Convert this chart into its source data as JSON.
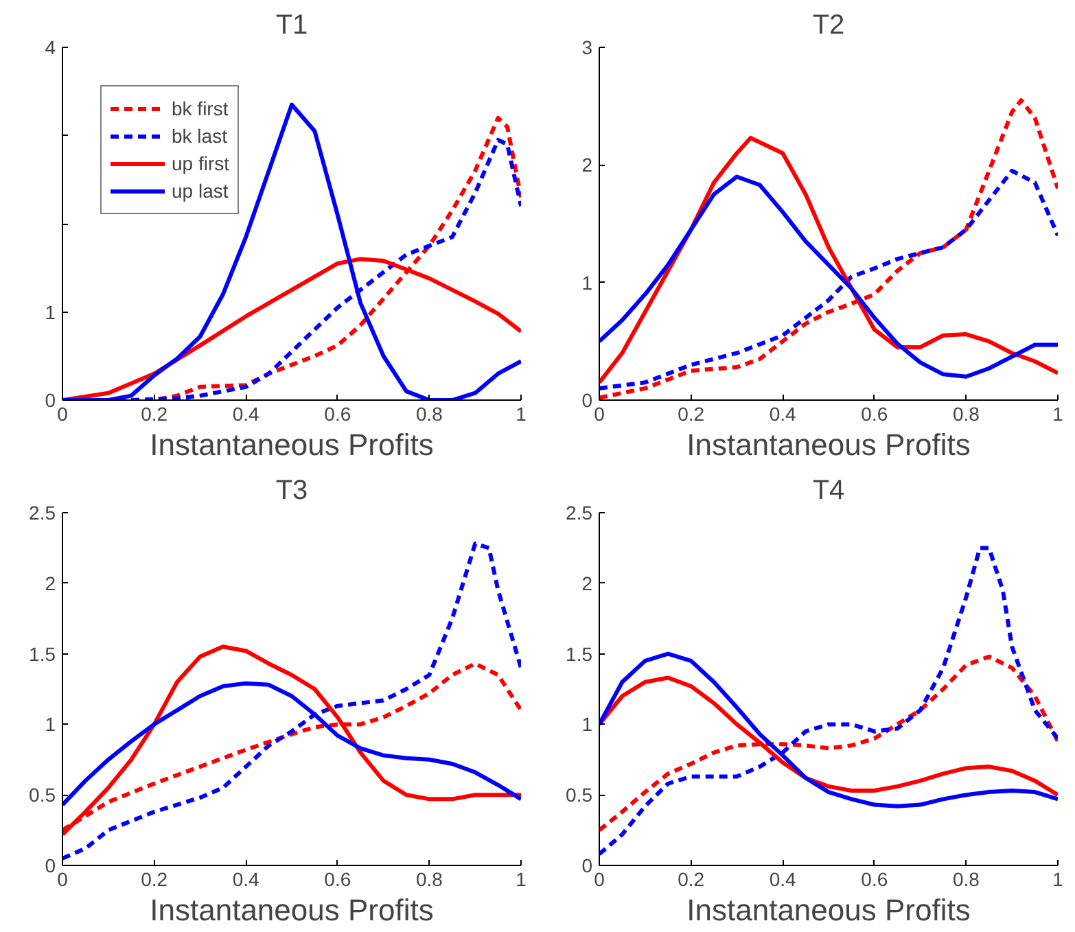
{
  "chart_data": [
    {
      "type": "line",
      "title": "T1",
      "xlabel": "Instantaneous Profits",
      "xlim": [
        0,
        1
      ],
      "ylim": [
        0,
        4
      ],
      "xticks": [
        0,
        0.2,
        0.4,
        0.6,
        0.8,
        1
      ],
      "yticks": [
        0,
        1,
        {
          "value": 2,
          "label": null
        },
        {
          "value": 3,
          "label": null
        },
        4
      ],
      "grid": false,
      "legend": "top left",
      "series": [
        {
          "name": "bk first",
          "color": "#ff0000",
          "line_style": "dashed",
          "x": [
            0,
            0.2,
            0.25,
            0.3,
            0.4,
            0.45,
            0.5,
            0.55,
            0.6,
            0.65,
            0.7,
            0.75,
            0.8,
            0.85,
            0.9,
            0.95,
            0.97,
            1
          ],
          "values": [
            0,
            0,
            0.05,
            0.15,
            0.17,
            0.3,
            0.4,
            0.5,
            0.62,
            0.85,
            1.15,
            1.45,
            1.75,
            2.15,
            2.6,
            3.2,
            3.1,
            2.3
          ]
        },
        {
          "name": "bk last",
          "color": "#0000ff",
          "line_style": "dashed",
          "x": [
            0,
            0.15,
            0.25,
            0.3,
            0.35,
            0.4,
            0.45,
            0.5,
            0.55,
            0.6,
            0.65,
            0.7,
            0.75,
            0.8,
            0.85,
            0.9,
            0.95,
            0.97,
            1
          ],
          "values": [
            0,
            0,
            0.02,
            0.05,
            0.1,
            0.15,
            0.3,
            0.55,
            0.8,
            1.05,
            1.25,
            1.45,
            1.65,
            1.75,
            1.85,
            2.35,
            2.95,
            2.9,
            2.2
          ]
        },
        {
          "name": "up first",
          "color": "#ff0000",
          "line_style": "solid",
          "x": [
            0,
            0.1,
            0.2,
            0.3,
            0.4,
            0.5,
            0.55,
            0.6,
            0.65,
            0.7,
            0.75,
            0.8,
            0.85,
            0.9,
            0.95,
            1
          ],
          "values": [
            0,
            0.08,
            0.3,
            0.62,
            0.95,
            1.25,
            1.4,
            1.55,
            1.6,
            1.58,
            1.48,
            1.38,
            1.25,
            1.12,
            0.98,
            0.78
          ]
        },
        {
          "name": "up last",
          "color": "#0000ff",
          "line_style": "solid",
          "x": [
            0,
            0.1,
            0.15,
            0.2,
            0.25,
            0.3,
            0.35,
            0.4,
            0.45,
            0.5,
            0.55,
            0.6,
            0.65,
            0.7,
            0.75,
            0.8,
            0.85,
            0.9,
            0.95,
            1
          ],
          "values": [
            0,
            0,
            0.05,
            0.28,
            0.47,
            0.72,
            1.2,
            1.85,
            2.6,
            3.35,
            3.05,
            2.1,
            1.1,
            0.5,
            0.1,
            0,
            0,
            0.08,
            0.3,
            0.44
          ]
        }
      ]
    },
    {
      "type": "line",
      "title": "T2",
      "xlabel": "Instantaneous Profits",
      "xlim": [
        0,
        1
      ],
      "ylim": [
        0,
        3
      ],
      "xticks": [
        0,
        0.2,
        0.4,
        0.6,
        0.8,
        1
      ],
      "yticks": [
        0,
        1,
        2,
        3
      ],
      "grid": false,
      "series": [
        {
          "color": "#ff0000",
          "line_style": "dashed",
          "x": [
            0,
            0.1,
            0.2,
            0.3,
            0.35,
            0.4,
            0.45,
            0.5,
            0.55,
            0.6,
            0.65,
            0.7,
            0.75,
            0.8,
            0.85,
            0.9,
            0.92,
            0.95,
            1
          ],
          "values": [
            0.02,
            0.1,
            0.25,
            0.28,
            0.35,
            0.5,
            0.65,
            0.75,
            0.82,
            0.9,
            1.1,
            1.25,
            1.3,
            1.45,
            1.95,
            2.45,
            2.55,
            2.4,
            1.8
          ]
        },
        {
          "color": "#0000ff",
          "line_style": "dashed",
          "x": [
            0,
            0.1,
            0.2,
            0.3,
            0.4,
            0.5,
            0.55,
            0.6,
            0.65,
            0.7,
            0.75,
            0.8,
            0.85,
            0.9,
            0.95,
            1
          ],
          "values": [
            0.1,
            0.15,
            0.3,
            0.4,
            0.55,
            0.85,
            1.05,
            1.12,
            1.2,
            1.25,
            1.3,
            1.45,
            1.7,
            1.95,
            1.85,
            1.4
          ]
        },
        {
          "color": "#ff0000",
          "line_style": "solid",
          "x": [
            0,
            0.05,
            0.1,
            0.15,
            0.2,
            0.25,
            0.3,
            0.33,
            0.4,
            0.45,
            0.5,
            0.55,
            0.6,
            0.65,
            0.7,
            0.75,
            0.8,
            0.85,
            0.9,
            0.95,
            1
          ],
          "values": [
            0.15,
            0.4,
            0.75,
            1.1,
            1.45,
            1.85,
            2.1,
            2.23,
            2.1,
            1.75,
            1.3,
            0.95,
            0.6,
            0.45,
            0.45,
            0.55,
            0.56,
            0.5,
            0.4,
            0.33,
            0.23
          ]
        },
        {
          "color": "#0000ff",
          "line_style": "solid",
          "x": [
            0,
            0.05,
            0.1,
            0.15,
            0.2,
            0.25,
            0.3,
            0.35,
            0.4,
            0.45,
            0.5,
            0.55,
            0.6,
            0.65,
            0.7,
            0.75,
            0.8,
            0.85,
            0.9,
            0.95,
            1
          ],
          "values": [
            0.5,
            0.68,
            0.9,
            1.15,
            1.45,
            1.75,
            1.9,
            1.83,
            1.6,
            1.35,
            1.15,
            0.95,
            0.7,
            0.48,
            0.32,
            0.22,
            0.2,
            0.27,
            0.37,
            0.47,
            0.47
          ]
        }
      ]
    },
    {
      "type": "line",
      "title": "T3",
      "xlabel": "Instantaneous Profits",
      "xlim": [
        0,
        1
      ],
      "ylim": [
        0,
        2.5
      ],
      "xticks": [
        0,
        0.2,
        0.4,
        0.6,
        0.8,
        1
      ],
      "yticks": [
        0,
        0.5,
        1,
        1.5,
        2,
        2.5
      ],
      "grid": false,
      "series": [
        {
          "color": "#ff0000",
          "line_style": "dashed",
          "x": [
            0,
            0.1,
            0.2,
            0.3,
            0.4,
            0.5,
            0.55,
            0.6,
            0.65,
            0.7,
            0.75,
            0.8,
            0.85,
            0.9,
            0.95,
            1
          ],
          "values": [
            0.25,
            0.45,
            0.58,
            0.7,
            0.82,
            0.93,
            0.98,
            1.0,
            1.0,
            1.05,
            1.13,
            1.22,
            1.35,
            1.43,
            1.35,
            1.1
          ]
        },
        {
          "color": "#0000ff",
          "line_style": "dashed",
          "x": [
            0,
            0.05,
            0.1,
            0.2,
            0.3,
            0.35,
            0.4,
            0.45,
            0.5,
            0.55,
            0.6,
            0.65,
            0.7,
            0.75,
            0.8,
            0.85,
            0.9,
            0.93,
            0.95,
            1
          ],
          "values": [
            0.05,
            0.12,
            0.25,
            0.38,
            0.48,
            0.55,
            0.7,
            0.85,
            0.95,
            1.07,
            1.13,
            1.15,
            1.17,
            1.25,
            1.35,
            1.75,
            2.28,
            2.25,
            1.95,
            1.4
          ]
        },
        {
          "color": "#ff0000",
          "line_style": "solid",
          "x": [
            0,
            0.05,
            0.1,
            0.15,
            0.2,
            0.25,
            0.3,
            0.35,
            0.4,
            0.45,
            0.5,
            0.55,
            0.6,
            0.65,
            0.7,
            0.75,
            0.8,
            0.85,
            0.9,
            0.95,
            1
          ],
          "values": [
            0.22,
            0.38,
            0.55,
            0.75,
            1.0,
            1.3,
            1.48,
            1.55,
            1.52,
            1.43,
            1.35,
            1.25,
            1.05,
            0.8,
            0.6,
            0.5,
            0.47,
            0.47,
            0.5,
            0.5,
            0.5
          ]
        },
        {
          "color": "#0000ff",
          "line_style": "solid",
          "x": [
            0,
            0.05,
            0.1,
            0.15,
            0.2,
            0.25,
            0.3,
            0.35,
            0.4,
            0.45,
            0.5,
            0.55,
            0.6,
            0.65,
            0.7,
            0.75,
            0.8,
            0.85,
            0.9,
            0.95,
            1
          ],
          "values": [
            0.43,
            0.6,
            0.75,
            0.88,
            1.0,
            1.1,
            1.2,
            1.27,
            1.29,
            1.28,
            1.2,
            1.07,
            0.92,
            0.83,
            0.78,
            0.76,
            0.75,
            0.72,
            0.66,
            0.57,
            0.47
          ]
        }
      ]
    },
    {
      "type": "line",
      "title": "T4",
      "xlabel": "Instantaneous Profits",
      "xlim": [
        0,
        1
      ],
      "ylim": [
        0,
        2.5
      ],
      "xticks": [
        0,
        0.2,
        0.4,
        0.6,
        0.8,
        1
      ],
      "yticks": [
        0,
        0.5,
        1,
        1.5,
        2,
        2.5
      ],
      "grid": false,
      "series": [
        {
          "color": "#ff0000",
          "line_style": "dashed",
          "x": [
            0,
            0.05,
            0.1,
            0.15,
            0.2,
            0.25,
            0.3,
            0.35,
            0.4,
            0.45,
            0.5,
            0.55,
            0.6,
            0.65,
            0.7,
            0.75,
            0.8,
            0.85,
            0.9,
            0.95,
            1
          ],
          "values": [
            0.25,
            0.38,
            0.52,
            0.65,
            0.72,
            0.8,
            0.85,
            0.86,
            0.86,
            0.85,
            0.83,
            0.85,
            0.9,
            1.0,
            1.1,
            1.25,
            1.42,
            1.48,
            1.4,
            1.2,
            0.88
          ]
        },
        {
          "color": "#0000ff",
          "line_style": "dashed",
          "x": [
            0,
            0.05,
            0.1,
            0.15,
            0.2,
            0.3,
            0.35,
            0.4,
            0.45,
            0.5,
            0.55,
            0.6,
            0.65,
            0.7,
            0.75,
            0.8,
            0.83,
            0.85,
            0.88,
            0.9,
            0.95,
            1
          ],
          "values": [
            0.08,
            0.22,
            0.42,
            0.58,
            0.63,
            0.63,
            0.7,
            0.8,
            0.95,
            1.0,
            1.0,
            0.95,
            0.97,
            1.1,
            1.4,
            1.9,
            2.25,
            2.25,
            1.95,
            1.55,
            1.1,
            0.9
          ]
        },
        {
          "color": "#ff0000",
          "line_style": "solid",
          "x": [
            0,
            0.05,
            0.1,
            0.15,
            0.2,
            0.25,
            0.3,
            0.35,
            0.4,
            0.45,
            0.5,
            0.55,
            0.6,
            0.65,
            0.7,
            0.75,
            0.8,
            0.85,
            0.9,
            0.95,
            1
          ],
          "values": [
            1.0,
            1.2,
            1.3,
            1.33,
            1.27,
            1.15,
            1.0,
            0.87,
            0.73,
            0.62,
            0.56,
            0.53,
            0.53,
            0.56,
            0.6,
            0.65,
            0.69,
            0.7,
            0.67,
            0.6,
            0.5
          ]
        },
        {
          "color": "#0000ff",
          "line_style": "solid",
          "x": [
            0,
            0.05,
            0.1,
            0.15,
            0.2,
            0.25,
            0.3,
            0.35,
            0.4,
            0.45,
            0.5,
            0.55,
            0.6,
            0.65,
            0.7,
            0.75,
            0.8,
            0.85,
            0.9,
            0.95,
            1
          ],
          "values": [
            1.0,
            1.3,
            1.45,
            1.5,
            1.45,
            1.3,
            1.12,
            0.93,
            0.78,
            0.62,
            0.52,
            0.47,
            0.43,
            0.42,
            0.43,
            0.47,
            0.5,
            0.52,
            0.53,
            0.52,
            0.47
          ]
        }
      ]
    }
  ]
}
